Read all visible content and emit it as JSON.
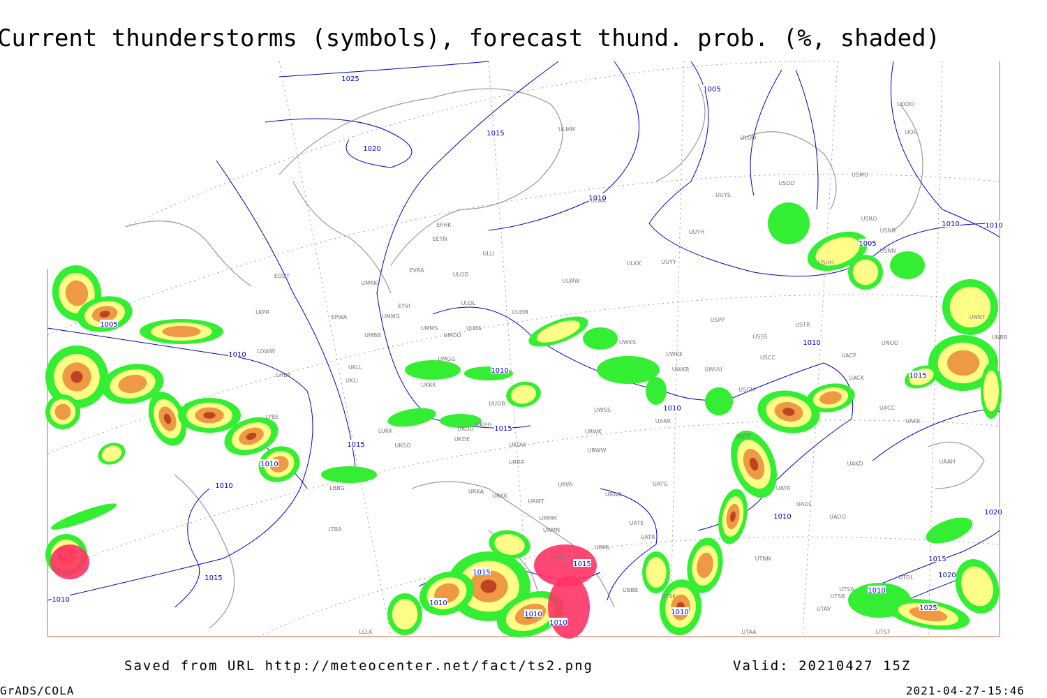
{
  "title": "Current thunderstorms (symbols), forecast thund. prob. (%, shaded)",
  "footer": {
    "saved_from": "Saved from URL http://meteocenter.net/fact/ts2.png",
    "valid": "Valid: 20210427 15Z",
    "software": "GrADS/COLA",
    "timestamp": "2021-04-27-15:46"
  },
  "isobar_labels": [
    "1025",
    "1005",
    "1020",
    "1015",
    "1010",
    "1010",
    "1010",
    "1005",
    "1005",
    "1010",
    "1010",
    "1010",
    "1015",
    "1010",
    "1015",
    "1015",
    "1010",
    "1010",
    "1010",
    "1015",
    "1020",
    "1015",
    "1015",
    "1015",
    "1010",
    "1010",
    "1010",
    "1025",
    "1010",
    "1010",
    "1010",
    "1020"
  ],
  "stations": [
    "EFHK",
    "EETN",
    "EVRA",
    "ULLI",
    "ULOL",
    "UUEM",
    "ULWW",
    "ULMM",
    "ULAA",
    "ULKK",
    "UUYY",
    "UUYH",
    "UUYS",
    "ULDD",
    "USDD",
    "USMU",
    "UOOO",
    "UOII",
    "USRO",
    "USNR",
    "USNN",
    "USHH",
    "USPP",
    "USTR",
    "USSS",
    "USCC",
    "UWKE",
    "UWKS",
    "UWKB",
    "UWUU",
    "UNOO",
    "UNBB",
    "UNNT",
    "UACP",
    "UACK",
    "USCM",
    "UACC",
    "UAKK",
    "UAKD",
    "UAAH",
    "UATA",
    "UAOL",
    "UAOO",
    "UATT",
    "UATG",
    "UATE",
    "UATR",
    "UTNN",
    "UTAK",
    "UTAA",
    "UTSA",
    "UTSB",
    "UTAV",
    "UTDL",
    "UTST",
    "UWSS",
    "UARR",
    "URWK",
    "URWW",
    "UKOW",
    "URRR",
    "URWI",
    "URWA",
    "URMT",
    "URMM",
    "URMN",
    "URML",
    "UGTB",
    "UBBB",
    "UKDD",
    "UKDE",
    "UKKK",
    "UMGG",
    "UMBB",
    "UMMS",
    "UMOO",
    "UUBS",
    "UMMG",
    "EYVI",
    "UMKK",
    "ULOD",
    "EDDT",
    "EPWA",
    "LKPR",
    "LOWW",
    "LHBP",
    "UKLL",
    "UKLI",
    "UKOO",
    "LUKK",
    "LYBE",
    "LBBG",
    "LTBA",
    "UKHH",
    "UUOB",
    "URKA",
    "URKK",
    "LCLK"
  ]
}
